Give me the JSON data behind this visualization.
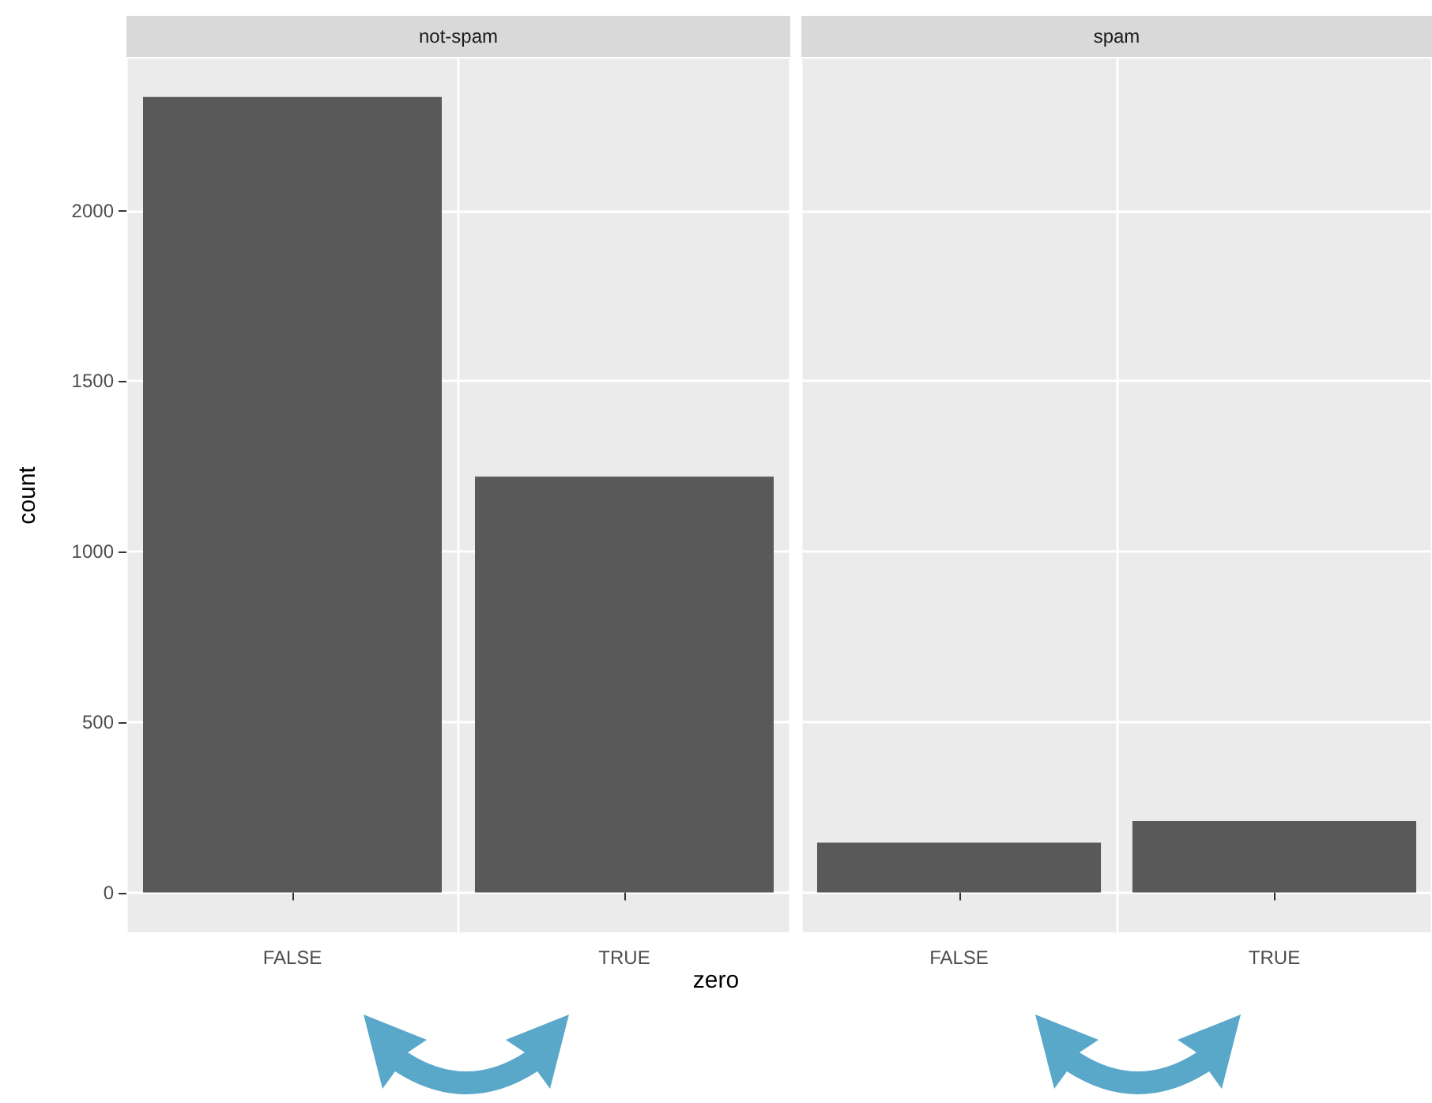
{
  "chart_data": [
    {
      "type": "bar",
      "title": "not-spam",
      "xlabel": "zero",
      "ylabel": "count",
      "categories": [
        "FALSE",
        "TRUE"
      ],
      "values": [
        2334,
        1220
      ],
      "color": "#595959",
      "ylim": [
        -117,
        2447
      ],
      "yticks": [
        0,
        500,
        1000,
        1500,
        2000
      ],
      "grid": true
    },
    {
      "type": "bar",
      "title": "spam",
      "categories": [
        "FALSE",
        "TRUE"
      ],
      "values": [
        146,
        210
      ],
      "color": "#595959",
      "ylim": [
        -117,
        2447
      ],
      "yticks": [
        0,
        500,
        1000,
        1500,
        2000
      ],
      "grid": true,
      "tick_labels": "x"
    }
  ]
}
